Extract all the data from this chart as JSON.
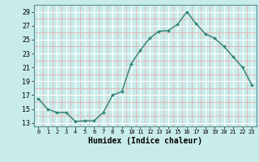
{
  "x": [
    0,
    1,
    2,
    3,
    4,
    5,
    6,
    7,
    8,
    9,
    10,
    11,
    12,
    13,
    14,
    15,
    16,
    17,
    18,
    19,
    20,
    21,
    22,
    23
  ],
  "y": [
    16.5,
    15.0,
    14.5,
    14.5,
    13.2,
    13.3,
    13.3,
    14.5,
    17.0,
    17.5,
    21.5,
    23.5,
    25.2,
    26.2,
    26.3,
    27.2,
    29.0,
    27.3,
    25.8,
    25.2,
    24.0,
    22.5,
    21.0,
    18.5
  ],
  "xlabel": "Humidex (Indice chaleur)",
  "xlim": [
    -0.5,
    23.5
  ],
  "ylim": [
    12.5,
    30.0
  ],
  "yticks": [
    13,
    15,
    17,
    19,
    21,
    23,
    25,
    27,
    29
  ],
  "xticks": [
    0,
    1,
    2,
    3,
    4,
    5,
    6,
    7,
    8,
    9,
    10,
    11,
    12,
    13,
    14,
    15,
    16,
    17,
    18,
    19,
    20,
    21,
    22,
    23
  ],
  "line_color": "#2d7f70",
  "marker": "+",
  "bg_color": "#c8ecea",
  "major_grid_color": "#ffffff",
  "minor_grid_color": "#e8b0b0"
}
